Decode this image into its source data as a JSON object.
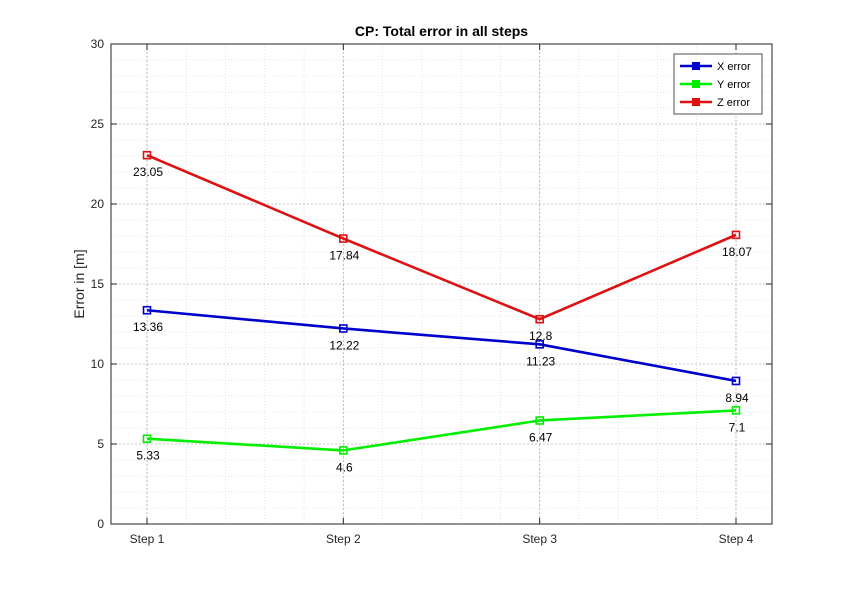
{
  "chart_data": {
    "type": "line",
    "title": "CP: Total error in all steps",
    "xlabel": "",
    "ylabel": "Error in [m]",
    "categories": [
      "Step 1",
      "Step 2",
      "Step 3",
      "Step 4"
    ],
    "ylim": [
      0,
      30
    ],
    "yticks": [
      0,
      5,
      10,
      15,
      20,
      25,
      30
    ],
    "grid": true,
    "minor_grid": true,
    "legend_position": "top-right",
    "series": [
      {
        "name": "X error",
        "color": "#0000cc",
        "values": [
          13.36,
          12.22,
          11.23,
          8.94
        ],
        "labels": [
          "13.36",
          "12.22",
          "11.23",
          "8.94"
        ]
      },
      {
        "name": "Y error",
        "color": "#00ee00",
        "values": [
          5.33,
          4.6,
          6.47,
          7.1
        ],
        "labels": [
          "5.33",
          "4.6",
          "6.47",
          "7.1"
        ]
      },
      {
        "name": "Z error",
        "color": "#dd1111",
        "values": [
          23.05,
          17.84,
          12.8,
          18.07
        ],
        "labels": [
          "23.05",
          "17.84",
          "12.8",
          "18.07"
        ]
      }
    ]
  }
}
